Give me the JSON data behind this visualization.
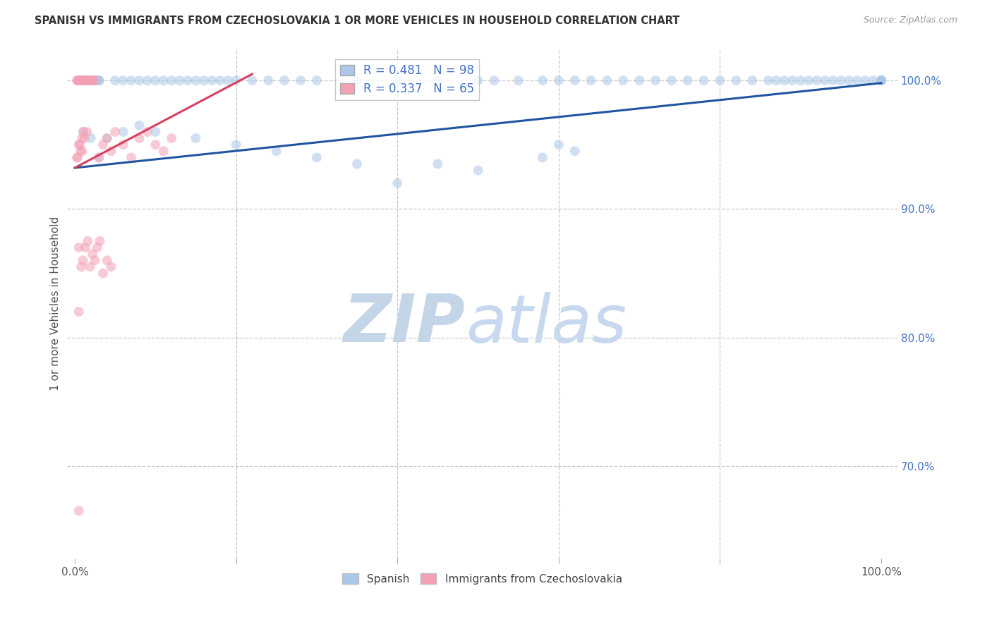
{
  "title": "SPANISH VS IMMIGRANTS FROM CZECHOSLOVAKIA 1 OR MORE VEHICLES IN HOUSEHOLD CORRELATION CHART",
  "source": "Source: ZipAtlas.com",
  "ylabel": "1 or more Vehicles in Household",
  "blue_R": 0.481,
  "blue_N": 98,
  "pink_R": 0.337,
  "pink_N": 65,
  "blue_color": "#aac8e8",
  "pink_color": "#f4a0b5",
  "blue_line_color": "#2255a0",
  "pink_line_color": "#d94060",
  "marker_size": 100,
  "marker_alpha": 0.55,
  "background_color": "#ffffff",
  "grid_color": "#c8c8c8",
  "watermark_zip": "ZIP",
  "watermark_atlas": "atlas",
  "watermark_color": "#c8d8ee",
  "ytick_values": [
    0.7,
    0.8,
    0.9,
    1.0
  ],
  "ytick_color": "#4472c4",
  "title_color": "#333333",
  "source_color": "#999999",
  "blue_line_x0": 0.0,
  "blue_line_y0": 0.932,
  "blue_line_x1": 1.0,
  "blue_line_y1": 0.998,
  "pink_line_x0": 0.0,
  "pink_line_y0": 0.932,
  "pink_line_x1": 0.22,
  "pink_line_y1": 1.005,
  "xlim_min": -0.01,
  "xlim_max": 1.02,
  "ylim_min": 0.628,
  "ylim_max": 1.025,
  "blue_x": [
    0.02,
    0.01,
    0.005,
    0.03,
    0.02,
    0.015,
    0.025,
    0.01,
    0.005,
    0.02,
    0.03,
    0.025,
    0.015,
    0.005,
    0.01,
    0.02,
    0.03,
    0.015,
    0.01,
    0.025,
    0.05,
    0.06,
    0.07,
    0.08,
    0.09,
    0.1,
    0.11,
    0.12,
    0.13,
    0.14,
    0.15,
    0.16,
    0.17,
    0.18,
    0.19,
    0.2,
    0.22,
    0.24,
    0.26,
    0.28,
    0.3,
    0.35,
    0.4,
    0.45,
    0.5,
    0.52,
    0.55,
    0.58,
    0.6,
    0.62,
    0.64,
    0.66,
    0.68,
    0.7,
    0.72,
    0.74,
    0.76,
    0.78,
    0.8,
    0.82,
    0.84,
    0.86,
    0.87,
    0.88,
    0.89,
    0.9,
    0.91,
    0.92,
    0.93,
    0.94,
    0.95,
    0.96,
    0.97,
    0.98,
    0.99,
    1.0,
    1.0,
    1.0,
    1.0,
    1.0,
    0.58,
    0.6,
    0.62,
    0.5,
    0.45,
    0.4,
    0.35,
    0.3,
    0.25,
    0.2,
    0.15,
    0.1,
    0.08,
    0.06,
    0.04,
    0.03,
    0.02,
    0.01
  ],
  "blue_y": [
    1.0,
    1.0,
    1.0,
    1.0,
    1.0,
    1.0,
    1.0,
    1.0,
    1.0,
    1.0,
    1.0,
    1.0,
    1.0,
    1.0,
    1.0,
    1.0,
    1.0,
    1.0,
    1.0,
    1.0,
    1.0,
    1.0,
    1.0,
    1.0,
    1.0,
    1.0,
    1.0,
    1.0,
    1.0,
    1.0,
    1.0,
    1.0,
    1.0,
    1.0,
    1.0,
    1.0,
    1.0,
    1.0,
    1.0,
    1.0,
    1.0,
    1.0,
    1.0,
    1.0,
    1.0,
    1.0,
    1.0,
    1.0,
    1.0,
    1.0,
    1.0,
    1.0,
    1.0,
    1.0,
    1.0,
    1.0,
    1.0,
    1.0,
    1.0,
    1.0,
    1.0,
    1.0,
    1.0,
    1.0,
    1.0,
    1.0,
    1.0,
    1.0,
    1.0,
    1.0,
    1.0,
    1.0,
    1.0,
    1.0,
    1.0,
    1.0,
    1.0,
    1.0,
    1.0,
    1.0,
    0.94,
    0.95,
    0.945,
    0.93,
    0.935,
    0.92,
    0.935,
    0.94,
    0.945,
    0.95,
    0.955,
    0.96,
    0.965,
    0.96,
    0.955,
    0.94,
    0.955,
    0.96
  ],
  "pink_x": [
    0.005,
    0.008,
    0.01,
    0.012,
    0.015,
    0.003,
    0.007,
    0.009,
    0.011,
    0.013,
    0.016,
    0.018,
    0.02,
    0.005,
    0.008,
    0.01,
    0.015,
    0.018,
    0.02,
    0.003,
    0.005,
    0.008,
    0.012,
    0.015,
    0.018,
    0.02,
    0.022,
    0.025,
    0.03,
    0.035,
    0.04,
    0.045,
    0.05,
    0.06,
    0.07,
    0.08,
    0.09,
    0.1,
    0.11,
    0.12,
    0.003,
    0.006,
    0.009,
    0.012,
    0.015,
    0.003,
    0.005,
    0.007,
    0.009,
    0.011,
    0.005,
    0.008,
    0.01,
    0.013,
    0.016,
    0.019,
    0.022,
    0.025,
    0.028,
    0.031,
    0.035,
    0.04,
    0.045,
    0.005,
    0.005
  ],
  "pink_y": [
    1.0,
    1.0,
    1.0,
    1.0,
    1.0,
    1.0,
    1.0,
    1.0,
    1.0,
    1.0,
    1.0,
    1.0,
    1.0,
    1.0,
    1.0,
    1.0,
    1.0,
    1.0,
    1.0,
    1.0,
    1.0,
    1.0,
    1.0,
    1.0,
    1.0,
    1.0,
    1.0,
    1.0,
    0.94,
    0.95,
    0.955,
    0.945,
    0.96,
    0.95,
    0.94,
    0.955,
    0.96,
    0.95,
    0.945,
    0.955,
    0.94,
    0.95,
    0.945,
    0.955,
    0.96,
    0.94,
    0.95,
    0.945,
    0.955,
    0.96,
    0.87,
    0.855,
    0.86,
    0.87,
    0.875,
    0.855,
    0.865,
    0.86,
    0.87,
    0.875,
    0.85,
    0.86,
    0.855,
    0.82,
    0.665
  ]
}
